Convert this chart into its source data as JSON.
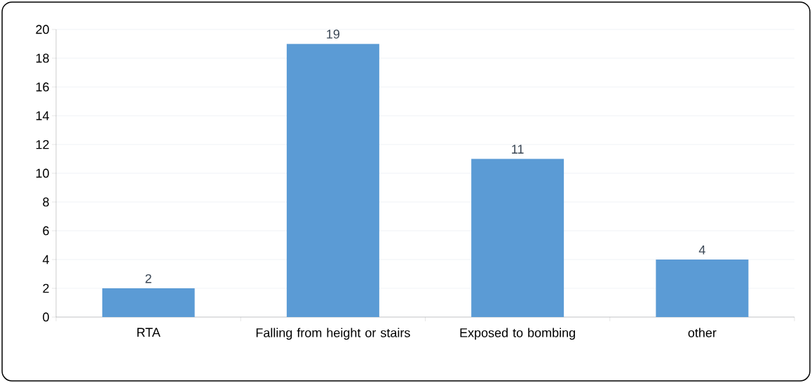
{
  "chart_data": {
    "type": "bar",
    "categories": [
      "RTA",
      "Falling from height or stairs",
      "Exposed to bombing",
      "other"
    ],
    "values": [
      2,
      19,
      11,
      4
    ],
    "color": "#5b9bd5",
    "ylim": [
      0,
      20
    ],
    "yticks": [
      0,
      2,
      4,
      6,
      8,
      10,
      12,
      14,
      16,
      18,
      20
    ],
    "grid": "y",
    "data_labels": true
  }
}
